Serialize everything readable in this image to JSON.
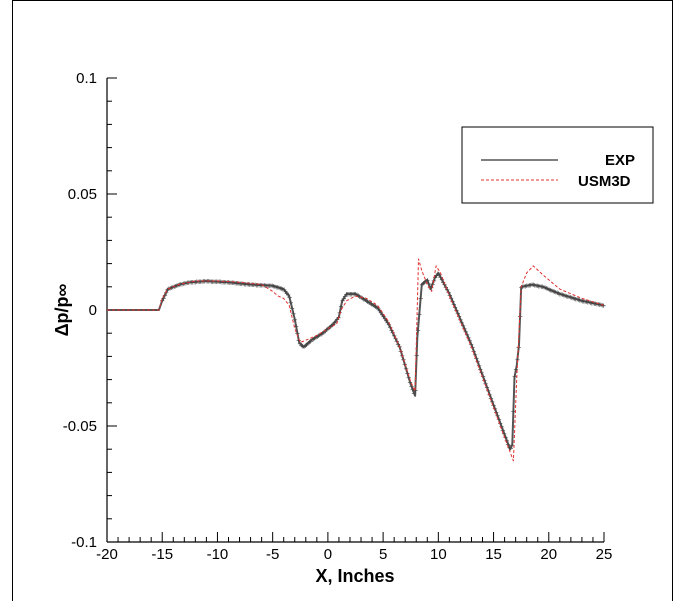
{
  "chart_data": {
    "type": "line",
    "title": "",
    "xlabel": "X, Inches",
    "ylabel": "Δp/p∞",
    "xlim": [
      -20,
      25
    ],
    "ylim": [
      -0.1,
      0.1
    ],
    "x_ticks": [
      "-20",
      "-15",
      "-10",
      "-5",
      "0",
      "5",
      "10",
      "15",
      "20",
      "25"
    ],
    "y_ticks": [
      "0.1",
      "0.05",
      "0",
      "-0.05",
      "-0.1"
    ],
    "grid": false,
    "legend": "top-right",
    "series": [
      {
        "name": "EXP",
        "color": "#555555",
        "style": "solid-with-markers",
        "x": [
          -20,
          -18,
          -16,
          -15.3,
          -15,
          -14.5,
          -13.5,
          -12.5,
          -11,
          -9,
          -7,
          -5,
          -4,
          -3.5,
          -3,
          -2.6,
          -2.2,
          -1.5,
          -0.5,
          0.5,
          1.0,
          1.3,
          1.7,
          2.5,
          3.5,
          4.5,
          5.5,
          6.5,
          7.5,
          7.9,
          8.1,
          8.5,
          9.0,
          9.3,
          9.7,
          10.0,
          11,
          12,
          13,
          14,
          15,
          16.5,
          16.7,
          16.9,
          17.1,
          17.3,
          17.5,
          18.5,
          19.5,
          21,
          23,
          25
        ],
        "y": [
          0,
          0,
          0,
          0,
          0.004,
          0.009,
          0.011,
          0.012,
          0.0125,
          0.012,
          0.011,
          0.0105,
          0.009,
          0.006,
          -0.004,
          -0.014,
          -0.016,
          -0.013,
          -0.01,
          -0.006,
          -0.003,
          0.004,
          0.007,
          0.007,
          0.004,
          0.001,
          -0.006,
          -0.016,
          -0.032,
          -0.037,
          -0.012,
          0.011,
          0.013,
          0.009,
          0.014,
          0.016,
          0.007,
          -0.004,
          -0.015,
          -0.028,
          -0.041,
          -0.06,
          -0.058,
          -0.029,
          -0.024,
          -0.015,
          0.01,
          0.011,
          0.01,
          0.007,
          0.004,
          0.002
        ]
      },
      {
        "name": "USM3D",
        "color": "#e03030",
        "style": "dashed",
        "x": [
          -20,
          -18,
          -16,
          -15.3,
          -15,
          -14.5,
          -13.5,
          -12,
          -10,
          -8,
          -6,
          -5,
          -4.5,
          -4,
          -3.5,
          -3,
          -2.5,
          -2,
          -1,
          0,
          0.8,
          1.2,
          1.7,
          2.5,
          3.5,
          4.5,
          5.5,
          6.5,
          7.5,
          7.9,
          8.2,
          8.5,
          9.0,
          9.4,
          9.8,
          10.2,
          11,
          12,
          13,
          14,
          15,
          16,
          16.8,
          17.1,
          17.5,
          18,
          18.6,
          19.5,
          21,
          23,
          25
        ],
        "y": [
          0,
          0,
          0,
          0,
          0.005,
          0.009,
          0.011,
          0.0125,
          0.0125,
          0.012,
          0.011,
          0.008,
          0.006,
          0.005,
          0.002,
          -0.008,
          -0.014,
          -0.013,
          -0.011,
          -0.008,
          -0.006,
          0.0,
          0.004,
          0.006,
          0.005,
          0.002,
          -0.005,
          -0.016,
          -0.031,
          -0.035,
          0.022,
          0.017,
          0.011,
          0.008,
          0.019,
          0.016,
          0.006,
          -0.005,
          -0.016,
          -0.029,
          -0.042,
          -0.055,
          -0.065,
          -0.03,
          0.01,
          0.016,
          0.019,
          0.015,
          0.009,
          0.005,
          0.002
        ]
      }
    ]
  }
}
